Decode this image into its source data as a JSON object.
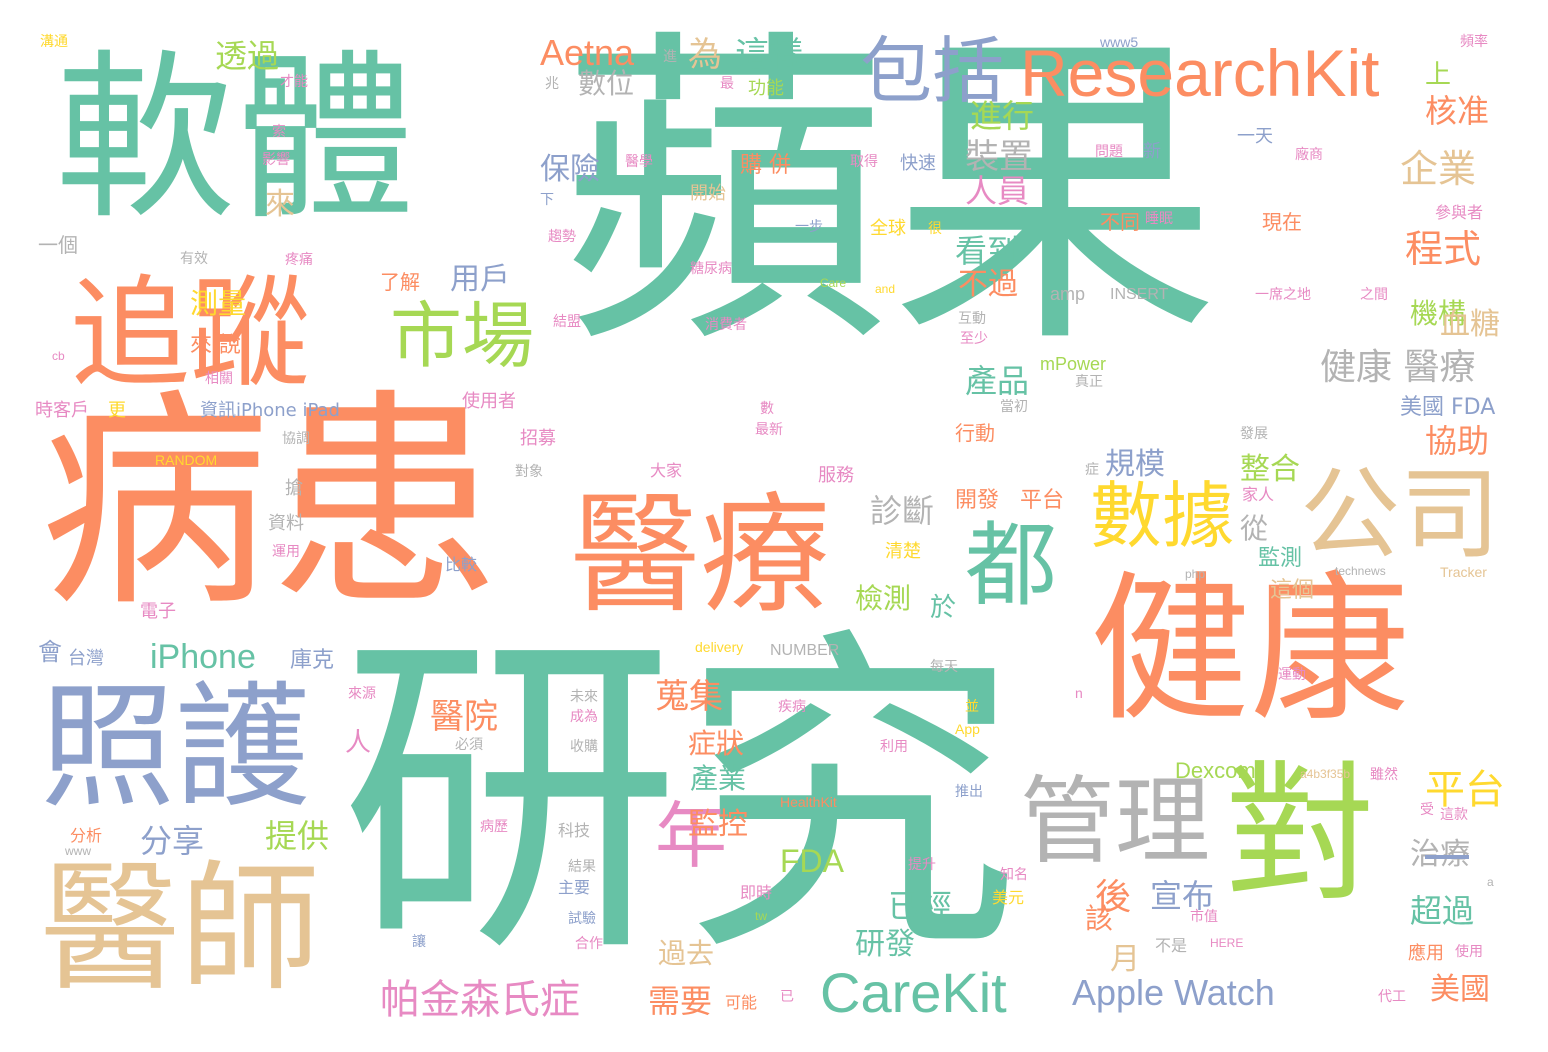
{
  "palette": {
    "teal": "#66c2a5",
    "orange": "#fc8d62",
    "blue": "#8da0cb",
    "pink": "#e78ac3",
    "green": "#a6d854",
    "yellow": "#ffd92f",
    "tan": "#e5c494",
    "gray": "#b3b3b3"
  },
  "words": [
    {
      "text": "蘋果",
      "color": "#66c2a5"
    },
    {
      "text": "研究",
      "color": "#66c2a5"
    },
    {
      "text": "病患",
      "color": "#fc8d62"
    },
    {
      "text": "軟體",
      "color": "#66c2a5"
    },
    {
      "text": "健康",
      "color": "#fc8d62"
    },
    {
      "text": "醫療",
      "color": "#fc8d62"
    },
    {
      "text": "照護",
      "color": "#8da0cb"
    },
    {
      "text": "醫師",
      "color": "#e5c494"
    },
    {
      "text": "追蹤",
      "color": "#fc8d62"
    },
    {
      "text": "對",
      "color": "#a6d854"
    },
    {
      "text": "公司",
      "color": "#e5c494"
    },
    {
      "text": "管理",
      "color": "#b3b3b3"
    },
    {
      "text": "ResearchKit",
      "color": "#fc8d62"
    },
    {
      "text": "CareKit",
      "color": "#66c2a5"
    },
    {
      "text": "包括",
      "color": "#8da0cb"
    },
    {
      "text": "市場",
      "color": "#a6d854"
    },
    {
      "text": "都",
      "color": "#66c2a5"
    },
    {
      "text": "數據",
      "color": "#ffd92f"
    },
    {
      "text": "年",
      "color": "#e78ac3"
    },
    {
      "text": "Apple Watch",
      "color": "#8da0cb"
    },
    {
      "text": "帕金森氏症",
      "color": "#e78ac3"
    },
    {
      "text": "Aetna",
      "color": "#fc8d62"
    },
    {
      "text": "iPhone",
      "color": "#66c2a5"
    },
    {
      "text": "FDA",
      "color": "#a6d854"
    },
    {
      "text": "健康 醫療",
      "color": "#b3b3b3"
    },
    {
      "text": "企業",
      "color": "#e5c494"
    },
    {
      "text": "程式",
      "color": "#fc8d62"
    },
    {
      "text": "機構",
      "color": "#a6d854"
    },
    {
      "text": "平台",
      "color": "#ffd92f"
    },
    {
      "text": "這樣",
      "color": "#66c2a5"
    },
    {
      "text": "為",
      "color": "#e5c494"
    },
    {
      "text": "透過",
      "color": "#a6d854"
    },
    {
      "text": "數位",
      "color": "#b3b3b3"
    },
    {
      "text": "進行",
      "color": "#a6d854"
    },
    {
      "text": "保險",
      "color": "#8da0cb"
    },
    {
      "text": "裝置",
      "color": "#b3b3b3"
    },
    {
      "text": "人員",
      "color": "#e78ac3"
    },
    {
      "text": "看到",
      "color": "#66c2a5"
    },
    {
      "text": "用戶",
      "color": "#8da0cb"
    },
    {
      "text": "不過",
      "color": "#fc8d62"
    },
    {
      "text": "測量",
      "color": "#ffd92f"
    },
    {
      "text": "產品",
      "color": "#66c2a5"
    },
    {
      "text": "規模",
      "color": "#8da0cb"
    },
    {
      "text": "整合",
      "color": "#a6d854"
    },
    {
      "text": "診斷",
      "color": "#b3b3b3"
    },
    {
      "text": "檢測",
      "color": "#a6d854"
    },
    {
      "text": "協助",
      "color": "#fc8d62"
    },
    {
      "text": "美國 FDA",
      "color": "#8da0cb"
    },
    {
      "text": "血糖",
      "color": "#e5c494"
    },
    {
      "text": "核准",
      "color": "#fc8d62"
    },
    {
      "text": "醫院",
      "color": "#fc8d62"
    },
    {
      "text": "蒐集",
      "color": "#fc8d62"
    },
    {
      "text": "症狀",
      "color": "#fc8d62"
    },
    {
      "text": "產業",
      "color": "#66c2a5"
    },
    {
      "text": "監控",
      "color": "#fc8d62"
    },
    {
      "text": "分享",
      "color": "#8da0cb"
    },
    {
      "text": "提供",
      "color": "#a6d854"
    },
    {
      "text": "後",
      "color": "#fc8d62"
    },
    {
      "text": "宣布",
      "color": "#8da0cb"
    },
    {
      "text": "已經",
      "color": "#66c2a5"
    },
    {
      "text": "研發",
      "color": "#66c2a5"
    },
    {
      "text": "超過",
      "color": "#66c2a5"
    },
    {
      "text": "治療",
      "color": "#b3b3b3"
    },
    {
      "text": "需要",
      "color": "#fc8d62"
    },
    {
      "text": "過去",
      "color": "#e5c494"
    },
    {
      "text": "月",
      "color": "#e5c494"
    },
    {
      "text": "該",
      "color": "#fc8d62"
    },
    {
      "text": "美國",
      "color": "#fc8d62"
    },
    {
      "text": "來",
      "color": "#e5c494"
    },
    {
      "text": "上",
      "color": "#a6d854"
    },
    {
      "text": "從",
      "color": "#b3b3b3"
    },
    {
      "text": "監測",
      "color": "#66c2a5"
    },
    {
      "text": "這個",
      "color": "#e5c494"
    },
    {
      "text": "於",
      "color": "#66c2a5"
    },
    {
      "text": "開發",
      "color": "#fc8d62"
    },
    {
      "text": "平台",
      "color": "#fc8d62"
    },
    {
      "text": "Dexcom",
      "color": "#a6d854"
    },
    {
      "text": "人",
      "color": "#e78ac3"
    },
    {
      "text": "會",
      "color": "#8da0cb"
    },
    {
      "text": "庫克",
      "color": "#8da0cb"
    },
    {
      "text": "台灣",
      "color": "#8da0cb"
    },
    {
      "text": "mPower",
      "color": "#a6d854"
    },
    {
      "text": "amp",
      "color": "#b3b3b3"
    },
    {
      "text": "INSERT",
      "color": "#b3b3b3"
    },
    {
      "text": "NUMBER",
      "color": "#b3b3b3"
    },
    {
      "text": "RANDOM",
      "color": "#ffd92f"
    },
    {
      "text": "資訊iPhone iPad",
      "color": "#8da0cb"
    },
    {
      "text": "www5",
      "color": "#8da0cb"
    },
    {
      "text": "HealthKit",
      "color": "#fc8d62"
    },
    {
      "text": "Tracker",
      "color": "#e5c494"
    },
    {
      "text": "technews",
      "color": "#b3b3b3"
    },
    {
      "text": "delivery",
      "color": "#ffd92f"
    },
    {
      "text": "Care",
      "color": "#a6d854"
    },
    {
      "text": "and",
      "color": "#ffd92f"
    },
    {
      "text": "php",
      "color": "#b3b3b3"
    },
    {
      "text": "tw",
      "color": "#a6d854"
    },
    {
      "text": "HERE",
      "color": "#e78ac3"
    },
    {
      "text": "App",
      "color": "#ffd92f"
    },
    {
      "text": "www",
      "color": "#b3b3b3"
    },
    {
      "text": "a4b3f35b",
      "color": "#e5c494"
    },
    {
      "text": "功能",
      "color": "#a6d854"
    },
    {
      "text": "全球",
      "color": "#ffd92f"
    },
    {
      "text": "購 併",
      "color": "#fc8d62"
    },
    {
      "text": "快速",
      "color": "#8da0cb"
    },
    {
      "text": "開始",
      "color": "#e5c494"
    },
    {
      "text": "現在",
      "color": "#fc8d62"
    },
    {
      "text": "不同",
      "color": "#fc8d62"
    },
    {
      "text": "睡眠",
      "color": "#e78ac3"
    },
    {
      "text": "參與者",
      "color": "#e78ac3"
    },
    {
      "text": "使用者",
      "color": "#e78ac3"
    },
    {
      "text": "招募",
      "color": "#e78ac3"
    },
    {
      "text": "行動",
      "color": "#fc8d62"
    },
    {
      "text": "服務",
      "color": "#e78ac3"
    },
    {
      "text": "大家",
      "color": "#e78ac3"
    },
    {
      "text": "對象",
      "color": "#b3b3b3"
    },
    {
      "text": "家人",
      "color": "#e78ac3"
    },
    {
      "text": "發展",
      "color": "#b3b3b3"
    },
    {
      "text": "清楚",
      "color": "#ffd92f"
    },
    {
      "text": "比較",
      "color": "#8da0cb"
    },
    {
      "text": "電子",
      "color": "#e78ac3"
    },
    {
      "text": "資料",
      "color": "#b3b3b3"
    },
    {
      "text": "運用",
      "color": "#e78ac3"
    },
    {
      "text": "搶",
      "color": "#b3b3b3"
    },
    {
      "text": "協調",
      "color": "#b3b3b3"
    },
    {
      "text": "時客戶",
      "color": "#e78ac3"
    },
    {
      "text": "更",
      "color": "#ffd92f"
    },
    {
      "text": "相關",
      "color": "#e78ac3"
    },
    {
      "text": "來 說",
      "color": "#fc8d62"
    },
    {
      "text": "了解",
      "color": "#fc8d62"
    },
    {
      "text": "有效",
      "color": "#b3b3b3"
    },
    {
      "text": "疼痛",
      "color": "#e78ac3"
    },
    {
      "text": "一個",
      "color": "#b3b3b3"
    },
    {
      "text": "影響",
      "color": "#e78ac3"
    },
    {
      "text": "才能",
      "color": "#e78ac3"
    },
    {
      "text": "溝通",
      "color": "#ffd92f"
    },
    {
      "text": "趨勢",
      "color": "#e78ac3"
    },
    {
      "text": "結盟",
      "color": "#e78ac3"
    },
    {
      "text": "消費者",
      "color": "#e78ac3"
    },
    {
      "text": "糖尿病",
      "color": "#e78ac3"
    },
    {
      "text": "一步",
      "color": "#8da0cb"
    },
    {
      "text": "醫學",
      "color": "#e78ac3"
    },
    {
      "text": "取得",
      "color": "#e78ac3"
    },
    {
      "text": "問題",
      "color": "#e78ac3"
    },
    {
      "text": "新",
      "color": "#8da0cb"
    },
    {
      "text": "一天",
      "color": "#8da0cb"
    },
    {
      "text": "廠商",
      "color": "#e78ac3"
    },
    {
      "text": "頻率",
      "color": "#e78ac3"
    },
    {
      "text": "一席之地",
      "color": "#e78ac3"
    },
    {
      "text": "之間",
      "color": "#e78ac3"
    },
    {
      "text": "互動",
      "color": "#b3b3b3"
    },
    {
      "text": "至少",
      "color": "#e78ac3"
    },
    {
      "text": "真正",
      "color": "#b3b3b3"
    },
    {
      "text": "當初",
      "color": "#b3b3b3"
    },
    {
      "text": "最新",
      "color": "#e78ac3"
    },
    {
      "text": "數",
      "color": "#e78ac3"
    },
    {
      "text": "症",
      "color": "#b3b3b3"
    },
    {
      "text": "每天",
      "color": "#b3b3b3"
    },
    {
      "text": "未來",
      "color": "#b3b3b3"
    },
    {
      "text": "成為",
      "color": "#e78ac3"
    },
    {
      "text": "必須",
      "color": "#b3b3b3"
    },
    {
      "text": "收購",
      "color": "#b3b3b3"
    },
    {
      "text": "疾病",
      "color": "#e78ac3"
    },
    {
      "text": "利用",
      "color": "#e78ac3"
    },
    {
      "text": "並",
      "color": "#ffd92f"
    },
    {
      "text": "推出",
      "color": "#8da0cb"
    },
    {
      "text": "運動",
      "color": "#e78ac3"
    },
    {
      "text": "雖然",
      "color": "#e78ac3"
    },
    {
      "text": "受",
      "color": "#e78ac3"
    },
    {
      "text": "這款",
      "color": "#e78ac3"
    },
    {
      "text": "病歷",
      "color": "#e78ac3"
    },
    {
      "text": "科技",
      "color": "#b3b3b3"
    },
    {
      "text": "結果",
      "color": "#b3b3b3"
    },
    {
      "text": "主要",
      "color": "#8da0cb"
    },
    {
      "text": "試驗",
      "color": "#8da0cb"
    },
    {
      "text": "合作",
      "color": "#e78ac3"
    },
    {
      "text": "讓",
      "color": "#8da0cb"
    },
    {
      "text": "即時",
      "color": "#e78ac3"
    },
    {
      "text": "提升",
      "color": "#e78ac3"
    },
    {
      "text": "知名",
      "color": "#e78ac3"
    },
    {
      "text": "美元",
      "color": "#ffd92f"
    },
    {
      "text": "市值",
      "color": "#e78ac3"
    },
    {
      "text": "不是",
      "color": "#b3b3b3"
    },
    {
      "text": "應用",
      "color": "#fc8d62"
    },
    {
      "text": "使用",
      "color": "#e78ac3"
    },
    {
      "text": "代工",
      "color": "#e78ac3"
    },
    {
      "text": "可能",
      "color": "#fc8d62"
    },
    {
      "text": "已",
      "color": "#e78ac3"
    },
    {
      "text": "分析",
      "color": "#fc8d62"
    },
    {
      "text": "來源",
      "color": "#e78ac3"
    },
    {
      "text": "兆",
      "color": "#b3b3b3"
    },
    {
      "text": "最",
      "color": "#e78ac3"
    },
    {
      "text": "索",
      "color": "#e78ac3"
    },
    {
      "text": "下",
      "color": "#8da0cb"
    },
    {
      "text": "進",
      "color": "#b3b3b3"
    },
    {
      "text": "很",
      "color": "#ffd92f"
    },
    {
      "text": "cb",
      "color": "#e78ac3"
    },
    {
      "text": "a",
      "color": "#b3b3b3"
    },
    {
      "text": "n",
      "color": "#e78ac3"
    }
  ]
}
